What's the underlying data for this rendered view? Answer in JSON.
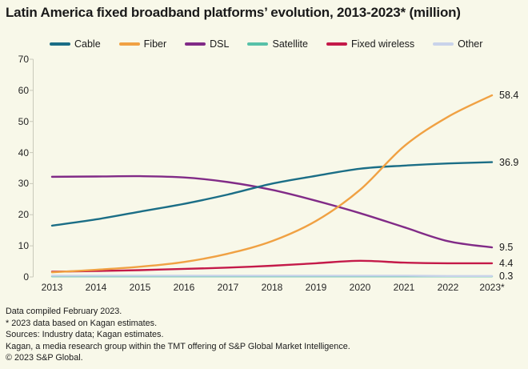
{
  "title": "Latin America fixed broadband platforms’ evolution, 2013-2023* (million)",
  "colors": {
    "background": "#f8f8e9",
    "text": "#1a1a1a",
    "axis_line": "#c9c9bb"
  },
  "chart_data": {
    "type": "line",
    "title": "Latin America fixed broadband platforms’ evolution, 2013-2023* (million)",
    "xlabel": "",
    "ylabel": "",
    "ylim": [
      0,
      70
    ],
    "y_ticks": [
      0,
      10,
      20,
      30,
      40,
      50,
      60,
      70
    ],
    "grid": false,
    "legend_position": "top",
    "x_labels": [
      "2013",
      "2014",
      "2015",
      "2016",
      "2017",
      "2018",
      "2019",
      "2020",
      "2021",
      "2022",
      "2023*"
    ],
    "series": [
      {
        "name": "Cable",
        "color": "#1b6e86",
        "end_label": "36.9",
        "values": [
          16.5,
          18.5,
          21.0,
          23.5,
          26.5,
          30.0,
          32.5,
          34.8,
          35.8,
          36.5,
          36.9
        ]
      },
      {
        "name": "Fiber",
        "color": "#f0a143",
        "end_label": "58.4",
        "values": [
          1.5,
          2.3,
          3.3,
          4.8,
          7.5,
          11.5,
          18.0,
          28.0,
          42.0,
          51.5,
          58.4
        ]
      },
      {
        "name": "DSL",
        "color": "#812b87",
        "end_label": "9.5",
        "values": [
          32.2,
          32.3,
          32.4,
          32.0,
          30.5,
          28.0,
          24.5,
          20.5,
          16.0,
          11.5,
          9.5
        ]
      },
      {
        "name": "Satellite",
        "color": "#57c1a8",
        "end_label": null,
        "values": [
          0.2,
          0.2,
          0.2,
          0.2,
          0.2,
          0.2,
          0.2,
          0.2,
          0.2,
          0.2,
          0.2
        ]
      },
      {
        "name": "Fixed wireless",
        "color": "#c41a49",
        "end_label": "4.4",
        "values": [
          1.7,
          1.9,
          2.2,
          2.6,
          3.0,
          3.6,
          4.4,
          5.2,
          4.6,
          4.4,
          4.4
        ]
      },
      {
        "name": "Other",
        "color": "#c9d3ea",
        "end_label": "0.3",
        "values": [
          0.4,
          0.4,
          0.4,
          0.4,
          0.4,
          0.4,
          0.4,
          0.4,
          0.4,
          0.3,
          0.3
        ]
      }
    ]
  },
  "footer": {
    "lines": [
      "Data compiled February 2023.",
      "* 2023 data based on Kagan estimates.",
      "Sources: Industry data; Kagan estimates.",
      "Kagan, a media research group within the TMT offering of S&P Global Market Intelligence.",
      "© 2023 S&P Global."
    ]
  }
}
